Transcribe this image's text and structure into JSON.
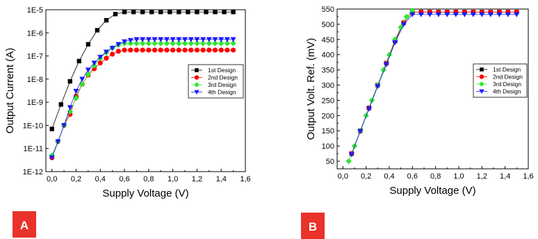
{
  "colors": {
    "design1": "#000000",
    "design2": "#ff0000",
    "design3": "#2ee82e",
    "design4": "#1a1aff",
    "badge": "#e8322a"
  },
  "badges": [
    "A",
    "B"
  ],
  "chart_data": [
    {
      "type": "scatter",
      "panel": "A",
      "xlabel": "Supply Voltage (V)",
      "ylabel": "Output Current (A)",
      "yscale": "log",
      "xlim": [
        -0.05,
        1.6
      ],
      "ylim": [
        1e-12,
        1e-05
      ],
      "xticks": [
        0.0,
        0.2,
        0.4,
        0.6,
        0.8,
        1.0,
        1.2,
        1.4,
        1.6
      ],
      "xtick_labels": [
        "0,0",
        "0,2",
        "0,4",
        "0,6",
        "0,8",
        "1,0",
        "1,2",
        "1,4",
        "1,6"
      ],
      "yticks": [
        1e-12,
        1e-11,
        1e-10,
        1e-09,
        1e-08,
        1e-07,
        1e-06,
        1e-05
      ],
      "ytick_labels": [
        "1E-12",
        "1E-11",
        "1E-10",
        "1E-9",
        "1E-8",
        "1E-7",
        "1E-6",
        "1E-5"
      ],
      "grid": false,
      "legend_position": "right",
      "series": [
        {
          "name": "1st Design",
          "marker": "square",
          "x": [
            0.0,
            0.075,
            0.15,
            0.225,
            0.3,
            0.375,
            0.45,
            0.525,
            0.6,
            0.675,
            0.75,
            0.825,
            0.9,
            0.975,
            1.05,
            1.125,
            1.2,
            1.275,
            1.35,
            1.425,
            1.5
          ],
          "y": [
            7e-11,
            8e-10,
            8e-09,
            6e-08,
            3.2e-07,
            1.3e-06,
            3.5e-06,
            6.5e-06,
            8e-06,
            8e-06,
            8e-06,
            8e-06,
            8e-06,
            8e-06,
            8e-06,
            8e-06,
            8e-06,
            8e-06,
            8e-06,
            8e-06,
            8e-06
          ]
        },
        {
          "name": "2nd Design",
          "marker": "circle",
          "x": [
            0.0,
            0.05,
            0.1,
            0.15,
            0.2,
            0.25,
            0.3,
            0.35,
            0.4,
            0.45,
            0.5,
            0.55,
            0.6,
            0.65,
            0.7,
            0.75,
            0.8,
            0.85,
            0.9,
            0.95,
            1.0,
            1.05,
            1.1,
            1.15,
            1.2,
            1.25,
            1.3,
            1.35,
            1.4,
            1.45,
            1.5
          ],
          "y": [
            4e-12,
            2e-11,
            1e-10,
            3e-10,
            1.8e-09,
            6e-09,
            1.5e-08,
            2.8e-08,
            5e-08,
            8e-08,
            1.2e-07,
            1.6e-07,
            1.8e-07,
            1.8e-07,
            1.8e-07,
            1.8e-07,
            1.8e-07,
            1.8e-07,
            1.8e-07,
            1.8e-07,
            1.8e-07,
            1.8e-07,
            1.8e-07,
            1.8e-07,
            1.8e-07,
            1.8e-07,
            1.8e-07,
            1.8e-07,
            1.8e-07,
            1.8e-07,
            1.8e-07
          ]
        },
        {
          "name": "3rd Design",
          "marker": "diamond",
          "x": [
            0.0,
            0.05,
            0.1,
            0.15,
            0.2,
            0.25,
            0.3,
            0.35,
            0.4,
            0.45,
            0.5,
            0.55,
            0.6,
            0.65,
            0.7,
            0.75,
            0.8,
            0.85,
            0.9,
            0.95,
            1.0,
            1.05,
            1.1,
            1.15,
            1.2,
            1.25,
            1.3,
            1.35,
            1.4,
            1.45,
            1.5
          ],
          "y": [
            5e-12,
            2e-11,
            1e-10,
            4e-10,
            1.5e-09,
            6e-09,
            1.6e-08,
            3.8e-08,
            8e-08,
            1.4e-07,
            2.2e-07,
            3e-07,
            3.5e-07,
            3.5e-07,
            3.5e-07,
            3.5e-07,
            3.5e-07,
            3.5e-07,
            3.5e-07,
            3.5e-07,
            3.5e-07,
            3.5e-07,
            3.5e-07,
            3.5e-07,
            3.5e-07,
            3.5e-07,
            3.5e-07,
            3.5e-07,
            3.5e-07,
            3.5e-07,
            3.5e-07
          ]
        },
        {
          "name": "4th Design",
          "marker": "triangle",
          "x": [
            0.0,
            0.05,
            0.1,
            0.15,
            0.2,
            0.25,
            0.3,
            0.35,
            0.4,
            0.45,
            0.5,
            0.55,
            0.6,
            0.65,
            0.7,
            0.75,
            0.8,
            0.85,
            0.9,
            0.95,
            1.0,
            1.05,
            1.1,
            1.15,
            1.2,
            1.25,
            1.3,
            1.35,
            1.4,
            1.45,
            1.5
          ],
          "y": [
            4e-12,
            2e-11,
            1e-10,
            6e-10,
            3e-09,
            1e-08,
            2.5e-08,
            5e-08,
            9e-08,
            1.5e-07,
            2.2e-07,
            3.2e-07,
            4.2e-07,
            4.8e-07,
            5.2e-07,
            5.2e-07,
            5.2e-07,
            5.2e-07,
            5.2e-07,
            5.2e-07,
            5.2e-07,
            5.2e-07,
            5.2e-07,
            5.2e-07,
            5.2e-07,
            5.2e-07,
            5.2e-07,
            5.2e-07,
            5.2e-07,
            5.2e-07,
            5.2e-07
          ]
        }
      ]
    },
    {
      "type": "scatter",
      "panel": "B",
      "xlabel": "Supply Voltage (V)",
      "ylabel": "Output Volt. Ref. (mV)",
      "yscale": "linear",
      "xlim": [
        -0.05,
        1.6
      ],
      "ylim": [
        25,
        550
      ],
      "xticks": [
        0.0,
        0.2,
        0.4,
        0.6,
        0.8,
        1.0,
        1.2,
        1.4,
        1.6
      ],
      "xtick_labels": [
        "0,0",
        "0,2",
        "0,4",
        "0,6",
        "0,8",
        "1,0",
        "1,2",
        "1,4",
        "1,6"
      ],
      "yticks": [
        50,
        100,
        150,
        200,
        250,
        300,
        350,
        400,
        450,
        500,
        550
      ],
      "ytick_labels": [
        "50",
        "100",
        "150",
        "200",
        "250",
        "300",
        "350",
        "400",
        "450",
        "500",
        "550"
      ],
      "grid": false,
      "legend_position": "right",
      "series": [
        {
          "name": "1st Design",
          "marker": "square",
          "x": [
            0.075,
            0.15,
            0.225,
            0.3,
            0.375,
            0.45,
            0.525,
            0.6,
            0.675,
            0.75,
            0.825,
            0.9,
            0.975,
            1.05,
            1.125,
            1.2,
            1.275,
            1.35,
            1.425,
            1.5
          ],
          "y": [
            75,
            150,
            225,
            300,
            372,
            445,
            505,
            540,
            540,
            540,
            540,
            540,
            540,
            540,
            540,
            540,
            540,
            540,
            540,
            540
          ]
        },
        {
          "name": "2nd Design",
          "marker": "circle",
          "x": [
            0.075,
            0.15,
            0.225,
            0.3,
            0.375,
            0.45,
            0.525,
            0.6,
            0.675,
            0.75,
            0.825,
            0.9,
            0.975,
            1.05,
            1.125,
            1.2,
            1.275,
            1.35,
            1.425,
            1.5
          ],
          "y": [
            75,
            150,
            225,
            300,
            372,
            445,
            505,
            540,
            540,
            540,
            540,
            540,
            540,
            540,
            540,
            540,
            540,
            540,
            540,
            540
          ]
        },
        {
          "name": "3rd Design",
          "marker": "diamond",
          "x": [
            0.05,
            0.1,
            0.15,
            0.2,
            0.25,
            0.3,
            0.35,
            0.4,
            0.45,
            0.5,
            0.55,
            0.6
          ],
          "y": [
            50,
            100,
            150,
            200,
            250,
            300,
            350,
            400,
            450,
            490,
            525,
            545
          ]
        },
        {
          "name": "4th Design",
          "marker": "triangle",
          "x": [
            0.075,
            0.15,
            0.225,
            0.3,
            0.375,
            0.45,
            0.525,
            0.6,
            0.675,
            0.75,
            0.825,
            0.9,
            0.975,
            1.05,
            1.125,
            1.2,
            1.275,
            1.35,
            1.425,
            1.5
          ],
          "y": [
            72,
            148,
            222,
            296,
            368,
            440,
            500,
            532,
            532,
            532,
            532,
            532,
            532,
            532,
            532,
            532,
            532,
            532,
            532,
            532
          ]
        }
      ]
    }
  ]
}
